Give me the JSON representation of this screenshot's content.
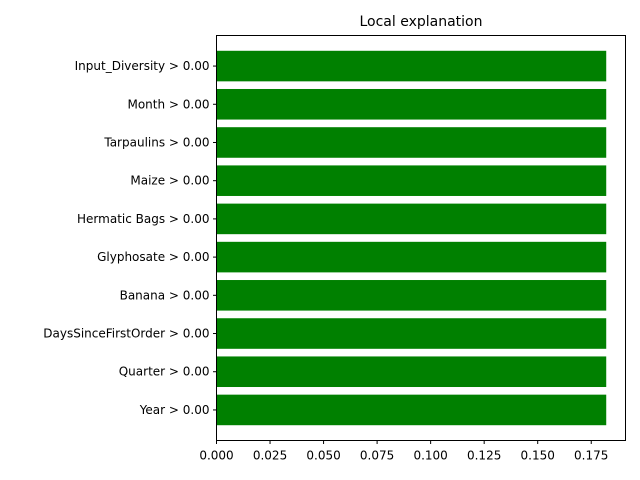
{
  "chart_data": {
    "type": "bar",
    "orientation": "horizontal",
    "title": "Local explanation",
    "xlabel": "",
    "ylabel": "",
    "categories": [
      "Input_Diversity > 0.00",
      "Month > 0.00",
      "Tarpaulins > 0.00",
      "Maize > 0.00",
      "Hermatic Bags > 0.00",
      "Glyphosate > 0.00",
      "Banana > 0.00",
      "DaysSinceFirstOrder > 0.00",
      "Quarter > 0.00",
      "Year > 0.00"
    ],
    "values": [
      0.182,
      0.182,
      0.182,
      0.182,
      0.182,
      0.182,
      0.182,
      0.182,
      0.182,
      0.182
    ],
    "xlim": [
      0.0,
      0.191
    ],
    "xticks": [
      0.0,
      0.025,
      0.05,
      0.075,
      0.1,
      0.125,
      0.15,
      0.175
    ],
    "xtick_labels": [
      "0.000",
      "0.025",
      "0.050",
      "0.075",
      "0.100",
      "0.125",
      "0.150",
      "0.175"
    ],
    "bar_color": "#008000",
    "grid": false,
    "legend": "none"
  }
}
